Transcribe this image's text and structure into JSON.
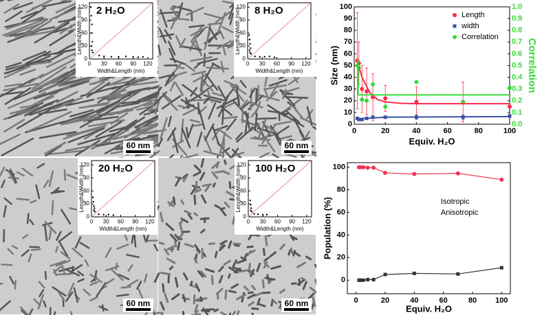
{
  "images": [
    {
      "scale_bar": "60 nm"
    },
    {
      "scale_bar": "60 nm"
    },
    {
      "scale_bar": "60 nm"
    },
    {
      "scale_bar": "60 nm"
    }
  ],
  "chart_data": [
    {
      "type": "scatter",
      "title": "2 H₂O",
      "x_label": "Width&Length (nm)",
      "y_label": "Length&Width (nm)",
      "xlim": [
        0,
        130
      ],
      "ylim": [
        0,
        130
      ],
      "xticks": [
        0,
        30,
        60,
        90,
        120
      ],
      "yticks": [
        0,
        30,
        60,
        90,
        120
      ],
      "series": [
        {
          "color": "#000000",
          "x": [
            3,
            4,
            5,
            5,
            6,
            4,
            5,
            7,
            20,
            30,
            45,
            60,
            75,
            90,
            100,
            110
          ],
          "values": [
            120,
            100,
            80,
            60,
            40,
            30,
            20,
            15,
            8,
            6,
            5,
            5,
            6,
            5,
            4,
            5
          ]
        }
      ]
    },
    {
      "type": "scatter",
      "title": "8 H₂O",
      "x_label": "Width&Length (nm)",
      "y_label": "Length&Width (nm)",
      "xlim": [
        0,
        130
      ],
      "ylim": [
        0,
        130
      ],
      "xticks": [
        0,
        30,
        60,
        90,
        120
      ],
      "yticks": [
        0,
        30,
        60,
        90,
        120
      ],
      "series": [
        {
          "color": "#000000",
          "x": [
            3,
            4,
            5,
            6,
            4,
            5,
            7,
            15,
            25,
            35,
            45,
            55
          ],
          "values": [
            55,
            45,
            35,
            25,
            20,
            15,
            12,
            6,
            5,
            5,
            6,
            4
          ]
        }
      ]
    },
    {
      "type": "scatter",
      "title": "20 H₂O",
      "x_label": "Width&Length (nm)",
      "y_label": "Length&Width (nm)",
      "xlim": [
        0,
        130
      ],
      "ylim": [
        0,
        130
      ],
      "xticks": [
        0,
        30,
        60,
        90,
        120
      ],
      "yticks": [
        0,
        30,
        60,
        90,
        120
      ],
      "series": [
        {
          "color": "#000000",
          "x": [
            3,
            4,
            5,
            6,
            5,
            7,
            15,
            25,
            35,
            45
          ],
          "values": [
            45,
            35,
            25,
            20,
            15,
            12,
            6,
            5,
            5,
            4
          ]
        }
      ]
    },
    {
      "type": "scatter",
      "title": "100 H₂O",
      "x_label": "Width&Length (nm)",
      "y_label": "Length&Width (nm)",
      "xlim": [
        0,
        130
      ],
      "ylim": [
        0,
        130
      ],
      "xticks": [
        0,
        30,
        60,
        90,
        120
      ],
      "yticks": [
        0,
        30,
        60,
        90,
        120
      ],
      "series": [
        {
          "color": "#000000",
          "x": [
            4,
            5,
            6,
            5,
            7,
            12,
            20,
            30,
            38
          ],
          "values": [
            38,
            28,
            20,
            15,
            12,
            7,
            6,
            5,
            5
          ]
        }
      ]
    },
    {
      "type": "line",
      "x_label": "Equiv. H₂O",
      "y_label": "Size (nm)",
      "y2_label": "Correlation",
      "y2_color": "#33dd33",
      "xlim": [
        0,
        100
      ],
      "ylim": [
        0,
        100
      ],
      "y2lim": [
        0,
        1
      ],
      "xticks": [
        0,
        20,
        40,
        60,
        80,
        100
      ],
      "yticks": [
        0,
        10,
        20,
        30,
        40,
        50,
        60,
        70,
        80,
        90,
        100
      ],
      "y2ticks": [
        {
          "value": 0,
          "label": "0.0"
        },
        0.1,
        0.2,
        0.3,
        0.4,
        0.5,
        0.6,
        0.7,
        0.8,
        0.9,
        {
          "value": 1,
          "label": "1.0"
        }
      ],
      "legend": "upper right",
      "series": [
        {
          "name": "Length",
          "color": "#ff2a4a",
          "marker": "circle",
          "x": [
            2,
            3,
            5,
            8,
            12,
            20,
            40,
            70,
            100
          ],
          "values": [
            54,
            52,
            30,
            28,
            23,
            22,
            19,
            19,
            15
          ],
          "errors": [
            41,
            18,
            20,
            20,
            20,
            11,
            13,
            17,
            0
          ]
        },
        {
          "name": "width",
          "color": "#3a4fa8",
          "marker": "square",
          "x": [
            2,
            3,
            5,
            8,
            12,
            20,
            40,
            70,
            100
          ],
          "values": [
            5,
            4,
            4,
            5,
            6,
            6,
            6,
            6,
            7
          ],
          "errors": [
            1,
            1,
            1,
            1,
            1,
            1,
            2,
            2,
            1
          ]
        },
        {
          "name": "Correlation",
          "color": "#33dd33",
          "marker": "circle",
          "axis": "y2",
          "x": [
            2,
            3,
            5,
            8,
            12,
            20,
            40,
            70,
            100
          ],
          "values": [
            0.5,
            0.48,
            0.21,
            0.2,
            0.34,
            0.15,
            0.36,
            0.19,
            0.31
          ]
        },
        {
          "color": "#ff2a4a",
          "style": "line",
          "x": [
            1.5,
            5,
            10,
            15,
            20,
            30,
            40,
            60,
            100
          ],
          "values": [
            56,
            40,
            27,
            21,
            19,
            17.8,
            17.5,
            17.5,
            17.5
          ]
        },
        {
          "color": "#3a4fa8",
          "style": "line",
          "x": [
            1.5,
            20,
            100
          ],
          "values": [
            4.5,
            6,
            6.5
          ]
        },
        {
          "color": "#33dd33",
          "style": "line",
          "axis": "y2",
          "x": [
            2.5,
            2.5,
            100
          ],
          "values": [
            0.55,
            0.25,
            0.25
          ]
        }
      ]
    },
    {
      "type": "line",
      "x_label": "Equiv. H₂O",
      "y_label": "Population (%)",
      "xlim": [
        -6,
        106
      ],
      "ylim": [
        -12,
        104
      ],
      "xticks": [
        0,
        20,
        40,
        60,
        80,
        100
      ],
      "yticks": [
        0,
        20,
        40,
        60,
        80,
        100
      ],
      "legend": "center",
      "legend_markers": false,
      "series": [
        {
          "name": "Isotropic",
          "color": "#ee3355",
          "marker": "circle",
          "style": "linemarker",
          "x": [
            2,
            3,
            5,
            8,
            12,
            20,
            40,
            70,
            100
          ],
          "values": [
            100,
            100,
            100,
            99.5,
            99.5,
            95,
            94,
            94.5,
            89
          ]
        },
        {
          "name": "Anisotropic",
          "color": "#333333",
          "marker": "square",
          "style": "linemarker",
          "x": [
            2,
            3,
            5,
            8,
            12,
            20,
            40,
            70,
            100
          ],
          "values": [
            0,
            0,
            0,
            0.5,
            0.5,
            5,
            6,
            5.5,
            11
          ]
        }
      ]
    }
  ]
}
